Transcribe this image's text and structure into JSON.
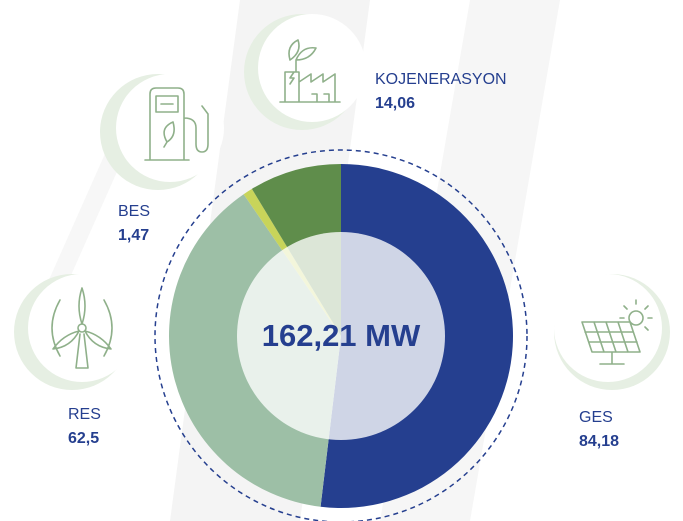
{
  "chart_data": {
    "type": "pie",
    "categories": [
      "GES",
      "RES",
      "BES",
      "KOJENERASYON"
    ],
    "values": [
      84.18,
      62.5,
      1.47,
      14.06
    ],
    "value_labels": [
      "84,18",
      "62,5",
      "1,47",
      "14,06"
    ],
    "colors": [
      "#253f8f",
      "#9dbfa6",
      "#c8d45a",
      "#5f8d4b"
    ],
    "center_label": "162,21 MW"
  }
}
